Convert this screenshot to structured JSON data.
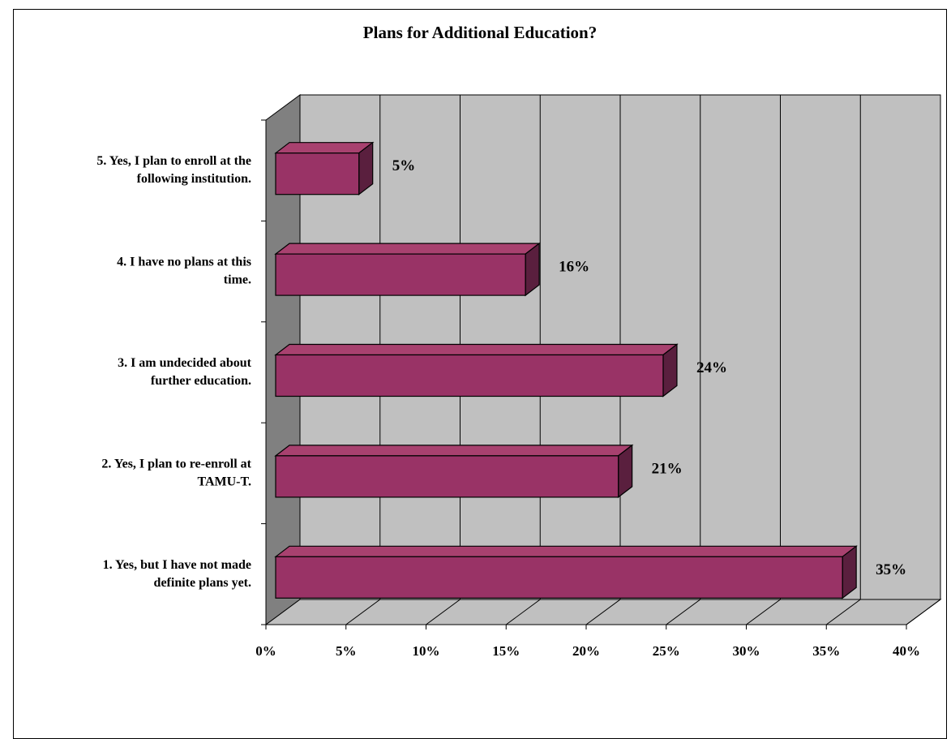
{
  "chart_data": {
    "type": "bar",
    "orientation": "horizontal",
    "style": "3d",
    "title": "Plans for Additional Education?",
    "categories": [
      [
        "5.  Yes, I plan to enroll at the",
        "following institution."
      ],
      [
        "4.  I have no plans at this",
        "time."
      ],
      [
        "3.  I am undecided about",
        "further education."
      ],
      [
        "2.  Yes, I plan to re-enroll at",
        "TAMU-T."
      ],
      [
        "1.  Yes, but I have not made",
        "definite plans yet."
      ]
    ],
    "values": [
      5.2,
      15.6,
      24.2,
      21.4,
      35.4
    ],
    "data_labels": [
      "5%",
      "16%",
      "24%",
      "21%",
      "35%"
    ],
    "x_ticks": [
      "0%",
      "5%",
      "10%",
      "15%",
      "20%",
      "25%",
      "30%",
      "35%",
      "40%"
    ],
    "xlim": [
      0,
      40
    ],
    "grid": true,
    "colors": {
      "bar_front": "#993366",
      "bar_top": "#a8416f",
      "bar_side": "#5a1f3e",
      "wall": "#c0c0c0",
      "side_wall": "#808080",
      "floor": "#c0c0c0"
    }
  }
}
